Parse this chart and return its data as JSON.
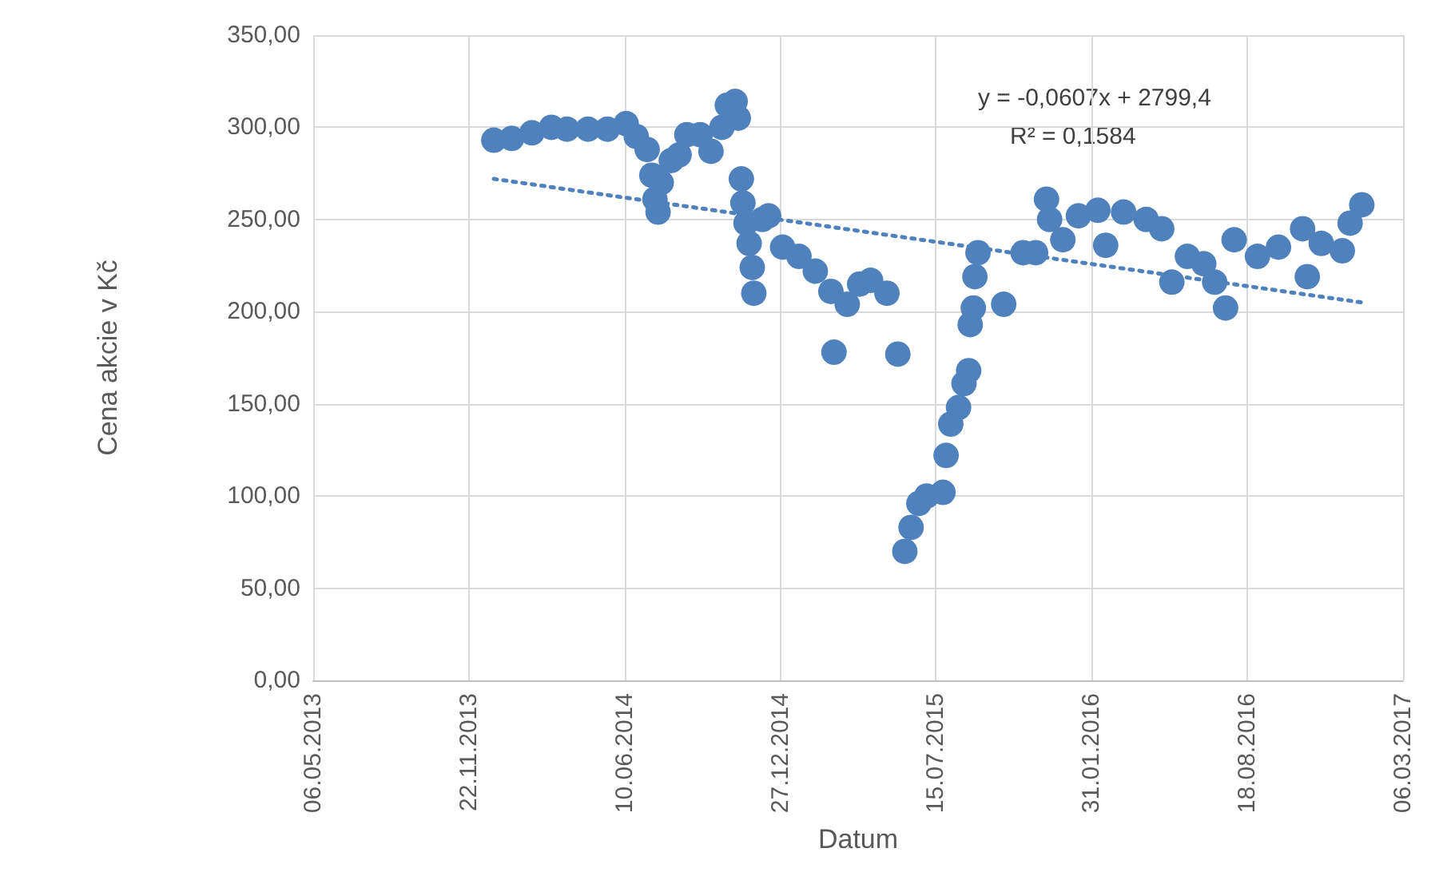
{
  "chart_data": {
    "type": "scatter",
    "xlabel": "Datum",
    "ylabel": "Cena akcie v Kč",
    "annotations": [
      "y = -0,0607x + 2799,4",
      "R² = 0,1584"
    ],
    "xlim": [
      "2013-05-06",
      "2017-03-06"
    ],
    "xticks": [
      {
        "value": "2013-05-06",
        "label": "06.05.2013"
      },
      {
        "value": "2013-11-22",
        "label": "22.11.2013"
      },
      {
        "value": "2014-06-10",
        "label": "10.06.2014"
      },
      {
        "value": "2014-12-27",
        "label": "27.12.2014"
      },
      {
        "value": "2015-07-15",
        "label": "15.07.2015"
      },
      {
        "value": "2016-01-31",
        "label": "31.01.2016"
      },
      {
        "value": "2016-08-18",
        "label": "18.08.2016"
      },
      {
        "value": "2017-03-06",
        "label": "06.03.2017"
      }
    ],
    "ylim": [
      0,
      350
    ],
    "yticks": [
      {
        "value": 0,
        "label": "0,00"
      },
      {
        "value": 50,
        "label": "50,00"
      },
      {
        "value": 100,
        "label": "100,00"
      },
      {
        "value": 150,
        "label": "150,00"
      },
      {
        "value": 200,
        "label": "200,00"
      },
      {
        "value": 250,
        "label": "250,00"
      },
      {
        "value": 300,
        "label": "300,00"
      },
      {
        "value": 350,
        "label": "350,00"
      }
    ],
    "grid": true,
    "marker": "circle",
    "series": [
      {
        "color": "#4f81bd",
        "x": [
          "2013-12-24",
          "2014-01-16",
          "2014-02-11",
          "2014-03-08",
          "2014-03-28",
          "2014-04-24",
          "2014-05-19",
          "2014-06-12",
          "2014-06-25",
          "2014-07-09",
          "2014-07-15",
          "2014-07-19",
          "2014-07-23",
          "2014-07-27",
          "2014-08-09",
          "2014-08-19",
          "2014-08-29",
          "2014-09-15",
          "2014-09-29",
          "2014-10-13",
          "2014-10-20",
          "2014-10-30",
          "2014-11-03",
          "2014-11-07",
          "2014-11-09",
          "2014-11-13",
          "2014-11-17",
          "2014-11-21",
          "2014-11-23",
          "2014-12-04",
          "2014-12-12",
          "2014-12-30",
          "2015-01-20",
          "2015-02-10",
          "2015-03-02",
          "2015-03-06",
          "2015-03-23",
          "2015-04-08",
          "2015-04-22",
          "2015-05-13",
          "2015-05-27",
          "2015-06-05",
          "2015-06-13",
          "2015-06-23",
          "2015-07-03",
          "2015-07-24",
          "2015-07-28",
          "2015-08-03",
          "2015-08-13",
          "2015-08-20",
          "2015-08-26",
          "2015-08-28",
          "2015-09-01",
          "2015-09-03",
          "2015-09-07",
          "2015-10-10",
          "2015-11-04",
          "2015-11-20",
          "2015-12-04",
          "2015-12-08",
          "2015-12-25",
          "2016-01-14",
          "2016-02-08",
          "2016-02-18",
          "2016-03-12",
          "2016-04-10",
          "2016-04-30",
          "2016-05-13",
          "2016-06-02",
          "2016-06-23",
          "2016-07-07",
          "2016-07-21",
          "2016-08-01",
          "2016-08-31",
          "2016-09-27",
          "2016-10-28",
          "2016-11-03",
          "2016-11-21",
          "2016-12-18",
          "2016-12-28",
          "2017-01-12"
        ],
        "values": [
          293,
          294,
          297,
          300,
          299,
          299,
          299,
          302,
          295,
          288,
          274,
          261,
          254,
          270,
          282,
          285,
          296,
          296,
          287,
          300,
          312,
          314,
          305,
          272,
          259,
          248,
          237,
          224,
          210,
          250,
          252,
          235,
          230,
          222,
          211,
          178,
          204,
          215,
          217,
          210,
          177,
          70,
          83,
          96,
          100,
          102,
          122,
          139,
          148,
          161,
          168,
          193,
          202,
          219,
          232,
          204,
          232,
          232,
          261,
          250,
          239,
          252,
          255,
          236,
          254,
          250,
          245,
          216,
          230,
          226,
          216,
          202,
          239,
          230,
          235,
          245,
          219,
          237,
          233,
          248,
          258
        ]
      },
      {
        "type": "line",
        "color": "#4f81bd",
        "line_style": "dotted",
        "marker": "none",
        "x": [
          "2013-12-24",
          "2017-01-12"
        ],
        "values": [
          272,
          205
        ]
      }
    ]
  }
}
